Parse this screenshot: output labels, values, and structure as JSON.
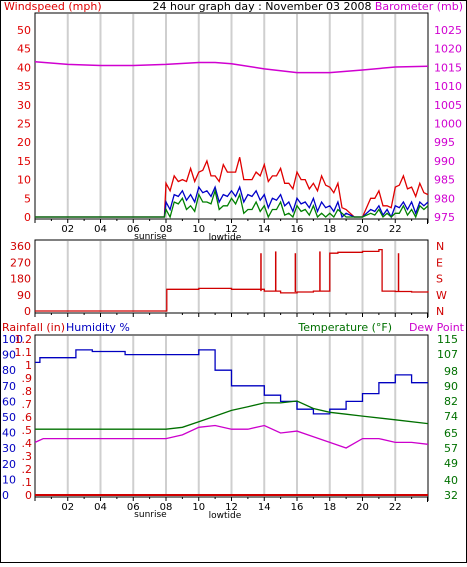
{
  "page": {
    "title": "24 hour graph day : November 03 2008"
  },
  "x_axis": {
    "tick_labels": [
      "02",
      "04",
      "06",
      "08",
      "10",
      "12",
      "14",
      "16",
      "18",
      "20",
      "22"
    ],
    "sunrise_label": "sunrise",
    "lowtide_label": "lowtide"
  },
  "colors": {
    "windspeed": "#e00000",
    "wind_avg": "#0000c8",
    "wind_green": "#008000",
    "barometer": "#d000d0",
    "direction": "#d00000",
    "humidity": "#0000c0",
    "temperature": "#007000",
    "dewpoint": "#cc00cc",
    "rainfall": "#d00000",
    "grid": "#cfcfcf",
    "frame": "#000000"
  },
  "chart_data": [
    {
      "type": "line",
      "left_axis_label": "Windspeed (mph)",
      "right_axis_label": "Barometer (mb)",
      "left_ticks": [
        "0",
        "5",
        "10",
        "15",
        "20",
        "25",
        "30",
        "35",
        "40",
        "45",
        "50"
      ],
      "right_ticks": [
        "975",
        "980",
        "985",
        "990",
        "995",
        "1000",
        "1005",
        "1010",
        "1015",
        "1020",
        "1025"
      ],
      "ylim_left": [
        0,
        50
      ],
      "ylim_right": [
        975,
        1025
      ],
      "series": [
        {
          "key": "barometer",
          "axis": "right",
          "x": [
            0,
            2,
            4,
            6,
            8,
            10,
            11,
            12,
            14,
            16,
            18,
            20,
            22,
            24
          ],
          "values": [
            1016.5,
            1015.8,
            1015.5,
            1015.5,
            1015.8,
            1016.3,
            1016.3,
            1016,
            1014.6,
            1013.6,
            1013.6,
            1014.3,
            1015.1,
            1015.3
          ]
        },
        {
          "key": "wind_gust",
          "axis": "left",
          "x": [
            0,
            7.9,
            8.0,
            8.5,
            9,
            9.5,
            10,
            10.5,
            11,
            11.5,
            12,
            12.5,
            13,
            13.5,
            14,
            14.5,
            15,
            15.5,
            16,
            16.5,
            17,
            17.5,
            18,
            18.5,
            19,
            19.5,
            20,
            20.5,
            21,
            21.5,
            22,
            22.5,
            23,
            23.5,
            24
          ],
          "values": [
            0,
            0,
            9,
            11,
            10,
            13,
            12,
            15,
            11,
            14,
            12,
            16,
            10,
            12,
            14,
            11,
            13,
            9,
            12,
            10,
            9,
            11,
            8,
            9,
            2,
            0,
            0,
            5,
            7,
            3,
            8,
            11,
            8,
            9,
            6
          ]
        },
        {
          "key": "wind_avg",
          "axis": "left",
          "x": [
            0,
            7.9,
            8.0,
            8.5,
            9,
            9.5,
            10,
            10.5,
            11,
            11.5,
            12,
            12.5,
            13,
            13.5,
            14,
            14.5,
            15,
            15.5,
            16,
            16.5,
            17,
            17.5,
            18,
            18.5,
            19,
            19.5,
            20,
            20.5,
            21,
            21.5,
            22,
            22.5,
            23,
            23.5,
            24
          ],
          "values": [
            0,
            0,
            4,
            6,
            7,
            6,
            8,
            7,
            8,
            6,
            7,
            8,
            6,
            7,
            6,
            5,
            6,
            4,
            5,
            4,
            5,
            4,
            3,
            4,
            1,
            0,
            0,
            2,
            3,
            2,
            3,
            4,
            4,
            4,
            4
          ]
        },
        {
          "key": "wind_low",
          "axis": "left",
          "x": [
            0,
            7.9,
            8.0,
            8.5,
            9,
            9.5,
            10,
            10.5,
            11,
            11.5,
            12,
            12.5,
            13,
            13.5,
            14,
            14.5,
            15,
            15.5,
            16,
            16.5,
            17,
            17.5,
            18,
            18.5,
            19,
            19.5,
            20,
            20.5,
            21,
            21.5,
            22,
            22.5,
            23,
            23.5,
            24
          ],
          "values": [
            0,
            0,
            2,
            4,
            5,
            3,
            6,
            4,
            7,
            3,
            5,
            6,
            2,
            4,
            3,
            2,
            4,
            1,
            3,
            2,
            3,
            1,
            1,
            2,
            0,
            0,
            0,
            1,
            2,
            1,
            1,
            3,
            2,
            3,
            3
          ]
        }
      ]
    },
    {
      "type": "line",
      "left_ticks": [
        "0",
        "90",
        "180",
        "270",
        "360"
      ],
      "right_ticks": [
        "N",
        "W",
        "S",
        "E",
        "N"
      ],
      "ylim": [
        0,
        360
      ],
      "series": [
        {
          "key": "direction",
          "x": [
            0,
            8,
            8.05,
            10,
            12,
            14,
            15,
            16,
            17,
            18,
            18.5,
            20,
            21,
            21.2,
            22,
            23,
            24
          ],
          "values": [
            0,
            0,
            120,
            125,
            120,
            110,
            100,
            105,
            110,
            320,
            325,
            330,
            340,
            110,
            108,
            105,
            110
          ]
        }
      ]
    },
    {
      "type": "line",
      "rainfall_axis_label": "Rainfall (in)",
      "humidity_axis_label": "Humidity %",
      "temperature_axis_label": "Temperature (°F)",
      "dewpoint_axis_label": "Dew Point",
      "humidity_ticks": [
        "0",
        "10",
        "20",
        "30",
        "40",
        "50",
        "60",
        "70",
        "80",
        "90",
        "100"
      ],
      "rainfall_ticks": [
        "0",
        ".1",
        ".2",
        ".3",
        ".4",
        ".5",
        ".6",
        ".7",
        ".8",
        ".9",
        "1",
        "1.1",
        "1.2"
      ],
      "temperature_ticks": [
        "32",
        "40",
        "49",
        "57",
        "65",
        "74",
        "82",
        "90",
        "98",
        "107",
        "115"
      ],
      "ylim_humidity": [
        0,
        100
      ],
      "ylim_temperature": [
        32,
        115
      ],
      "series": [
        {
          "key": "humidity",
          "axis": "humidity",
          "step": true,
          "x": [
            0,
            0.3,
            2.5,
            3.5,
            5.5,
            8,
            10,
            11,
            12,
            14,
            15,
            16,
            17,
            18,
            19,
            20,
            21,
            22,
            23,
            24
          ],
          "values": [
            85,
            88,
            93,
            92,
            90,
            90,
            93,
            80,
            70,
            64,
            60,
            55,
            52,
            55,
            60,
            65,
            72,
            77,
            72,
            72
          ]
        },
        {
          "key": "temperature",
          "axis": "temperature",
          "x": [
            0,
            2,
            4,
            6,
            8,
            9,
            10,
            11,
            12,
            13,
            14,
            15,
            16,
            17,
            18,
            19,
            20,
            22,
            24
          ],
          "values": [
            67,
            67,
            67,
            67,
            67,
            68,
            71,
            74,
            77,
            79,
            81,
            81,
            82,
            78,
            76,
            75,
            74,
            72,
            70
          ]
        },
        {
          "key": "dewpoint",
          "axis": "temperature",
          "x": [
            0,
            0.5,
            2,
            4,
            6,
            8,
            9,
            10,
            11,
            12,
            13,
            14,
            15,
            16,
            17,
            18,
            19,
            20,
            21,
            22,
            23,
            24
          ],
          "values": [
            60,
            62,
            62,
            62,
            62,
            62,
            64,
            68,
            69,
            67,
            67,
            69,
            65,
            66,
            63,
            60,
            57,
            62,
            62,
            60,
            60,
            59
          ]
        },
        {
          "key": "rainfall",
          "axis": "rainfall",
          "x": [
            0,
            24
          ],
          "values": [
            0,
            0
          ]
        }
      ]
    }
  ]
}
